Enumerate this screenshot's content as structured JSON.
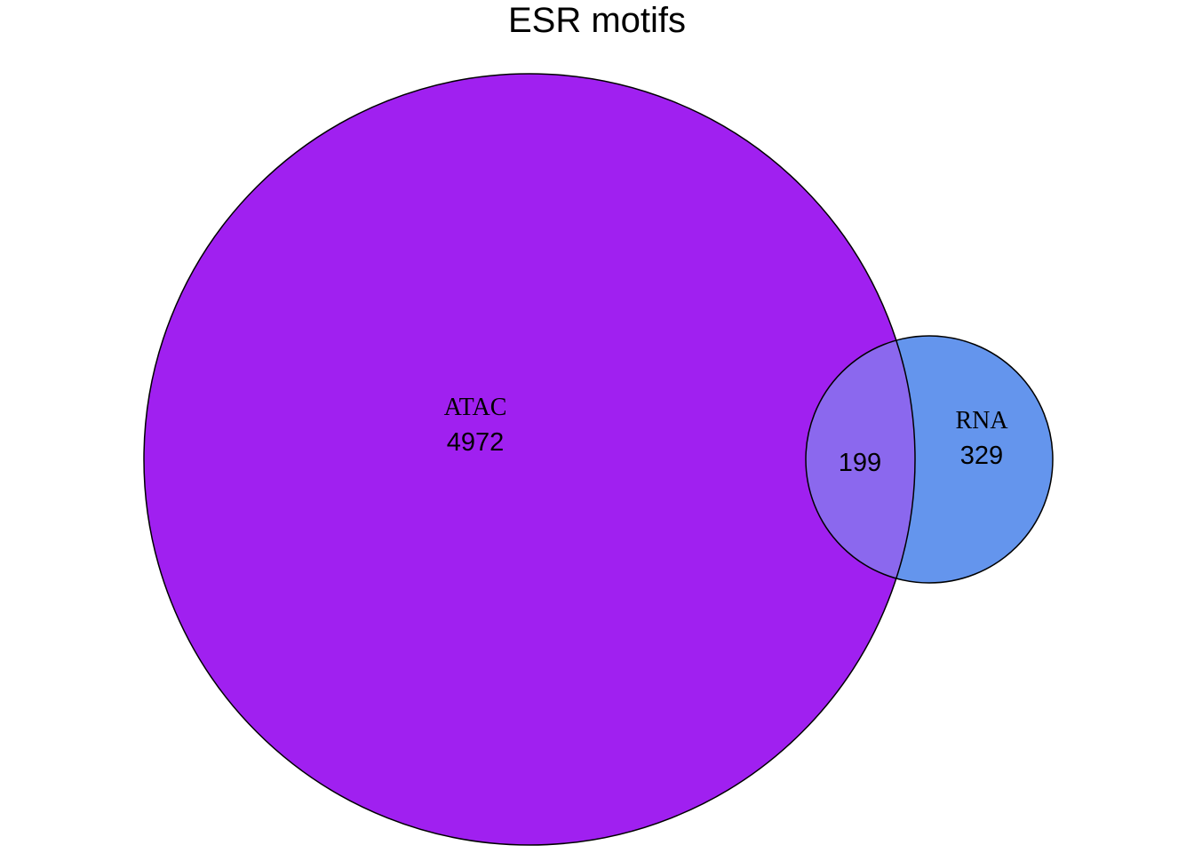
{
  "title": "ESR motifs",
  "sets": [
    {
      "label": "ATAC",
      "only_count": "4972",
      "color": "#A020F0"
    },
    {
      "label": "RNA",
      "only_count": "329",
      "color": "#6495ED"
    }
  ],
  "intersection": {
    "count": "199",
    "color": "#8B68EE"
  },
  "outline_color": "#000000"
}
